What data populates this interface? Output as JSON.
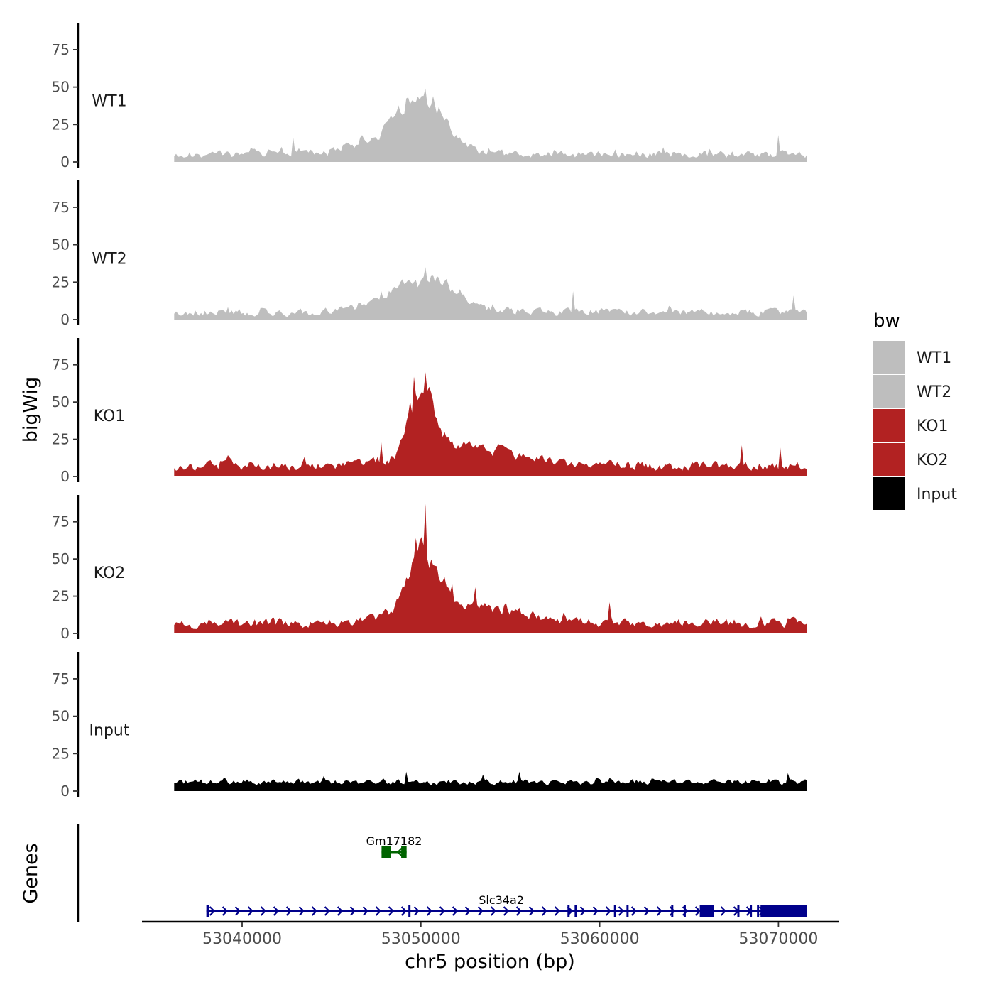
{
  "chart_data": {
    "type": "area",
    "ylabel": "bigWig",
    "xlabel": "chr5 position (bp)",
    "x_range": [
      53034400,
      53073400
    ],
    "data_x_range": [
      53036200,
      53071600
    ],
    "ylim": [
      0,
      93
    ],
    "y_ticks": [
      "0",
      "25",
      "50",
      "75"
    ],
    "x_ticks": [
      {
        "value": 53040000,
        "label": "53040000"
      },
      {
        "value": 53050000,
        "label": "53050000"
      },
      {
        "value": 53060000,
        "label": "53060000"
      },
      {
        "value": 53070000,
        "label": "53070000"
      }
    ],
    "legend": {
      "title": "bw",
      "entries": [
        {
          "label": "WT1",
          "color": "#bebebe"
        },
        {
          "label": "WT2",
          "color": "#bebebe"
        },
        {
          "label": "KO1",
          "color": "#b22222"
        },
        {
          "label": "KO2",
          "color": "#b22222"
        },
        {
          "label": "Input",
          "color": "#000000"
        }
      ]
    },
    "series": [
      {
        "name": "WT1",
        "color": "#bebebe",
        "baseline": 5,
        "noise": 4,
        "seed": 11,
        "peaks": [
          {
            "pos": 53050000,
            "height": 30,
            "width": 1300
          },
          {
            "pos": 53048000,
            "height": 10,
            "width": 1800
          }
        ],
        "spikes": [
          {
            "pos": 53050300,
            "value": 49
          },
          {
            "pos": 53049700,
            "value": 40
          },
          {
            "pos": 53051000,
            "value": 37
          },
          {
            "pos": 53042800,
            "value": 17
          },
          {
            "pos": 53070000,
            "value": 18
          }
        ]
      },
      {
        "name": "WT2",
        "color": "#bebebe",
        "baseline": 5,
        "noise": 4,
        "seed": 23,
        "peaks": [
          {
            "pos": 53050500,
            "height": 20,
            "width": 1500
          },
          {
            "pos": 53048000,
            "height": 7,
            "width": 1600
          }
        ],
        "spikes": [
          {
            "pos": 53050300,
            "value": 35
          },
          {
            "pos": 53047800,
            "value": 19
          },
          {
            "pos": 53058500,
            "value": 19
          },
          {
            "pos": 53070900,
            "value": 16
          }
        ]
      },
      {
        "name": "KO1",
        "color": "#b22222",
        "baseline": 7,
        "noise": 5,
        "seed": 37,
        "peaks": [
          {
            "pos": 53050000,
            "height": 50,
            "width": 700
          },
          {
            "pos": 53052500,
            "height": 12,
            "width": 2800
          }
        ],
        "spikes": [
          {
            "pos": 53050300,
            "value": 70
          },
          {
            "pos": 53049600,
            "value": 67
          },
          {
            "pos": 53047800,
            "value": 23
          },
          {
            "pos": 53068000,
            "value": 21
          },
          {
            "pos": 53070100,
            "value": 20
          }
        ]
      },
      {
        "name": "KO2",
        "color": "#b22222",
        "baseline": 7,
        "noise": 5,
        "seed": 53,
        "peaks": [
          {
            "pos": 53050000,
            "height": 44,
            "width": 800
          },
          {
            "pos": 53052500,
            "height": 13,
            "width": 2800
          }
        ],
        "spikes": [
          {
            "pos": 53050300,
            "value": 87
          },
          {
            "pos": 53049700,
            "value": 64
          },
          {
            "pos": 53051800,
            "value": 33
          },
          {
            "pos": 53053000,
            "value": 31
          },
          {
            "pos": 53060600,
            "value": 21
          }
        ]
      },
      {
        "name": "Input",
        "color": "#000000",
        "baseline": 6,
        "noise": 3,
        "seed": 71,
        "peaks": [],
        "spikes": [
          {
            "pos": 53055500,
            "value": 13
          },
          {
            "pos": 53049200,
            "value": 13
          },
          {
            "pos": 53070500,
            "value": 12
          },
          {
            "pos": 53053500,
            "value": 11
          }
        ]
      }
    ],
    "genes_title": "Genes",
    "genes": [
      {
        "name": "Gm17182",
        "color": "#006400",
        "strand": "-",
        "start": 53047800,
        "end": 53049200,
        "exons": [
          [
            53047800,
            53048300
          ],
          [
            53048900,
            53049200
          ]
        ]
      },
      {
        "name": "Slc34a2",
        "color": "#00008b",
        "strand": "+",
        "start": 53038000,
        "end": 53071600,
        "exons": [
          [
            53038000,
            53038150
          ],
          [
            53049300,
            53049400
          ],
          [
            53058200,
            53058300
          ],
          [
            53058600,
            53058700
          ],
          [
            53060800,
            53060900
          ],
          [
            53061500,
            53061600
          ],
          [
            53064000,
            53064100
          ],
          [
            53064700,
            53064800
          ],
          [
            53065600,
            53066400
          ],
          [
            53067700,
            53067800
          ],
          [
            53068400,
            53068500
          ],
          [
            53068800,
            53068900
          ],
          [
            53069000,
            53071600
          ]
        ]
      }
    ]
  }
}
